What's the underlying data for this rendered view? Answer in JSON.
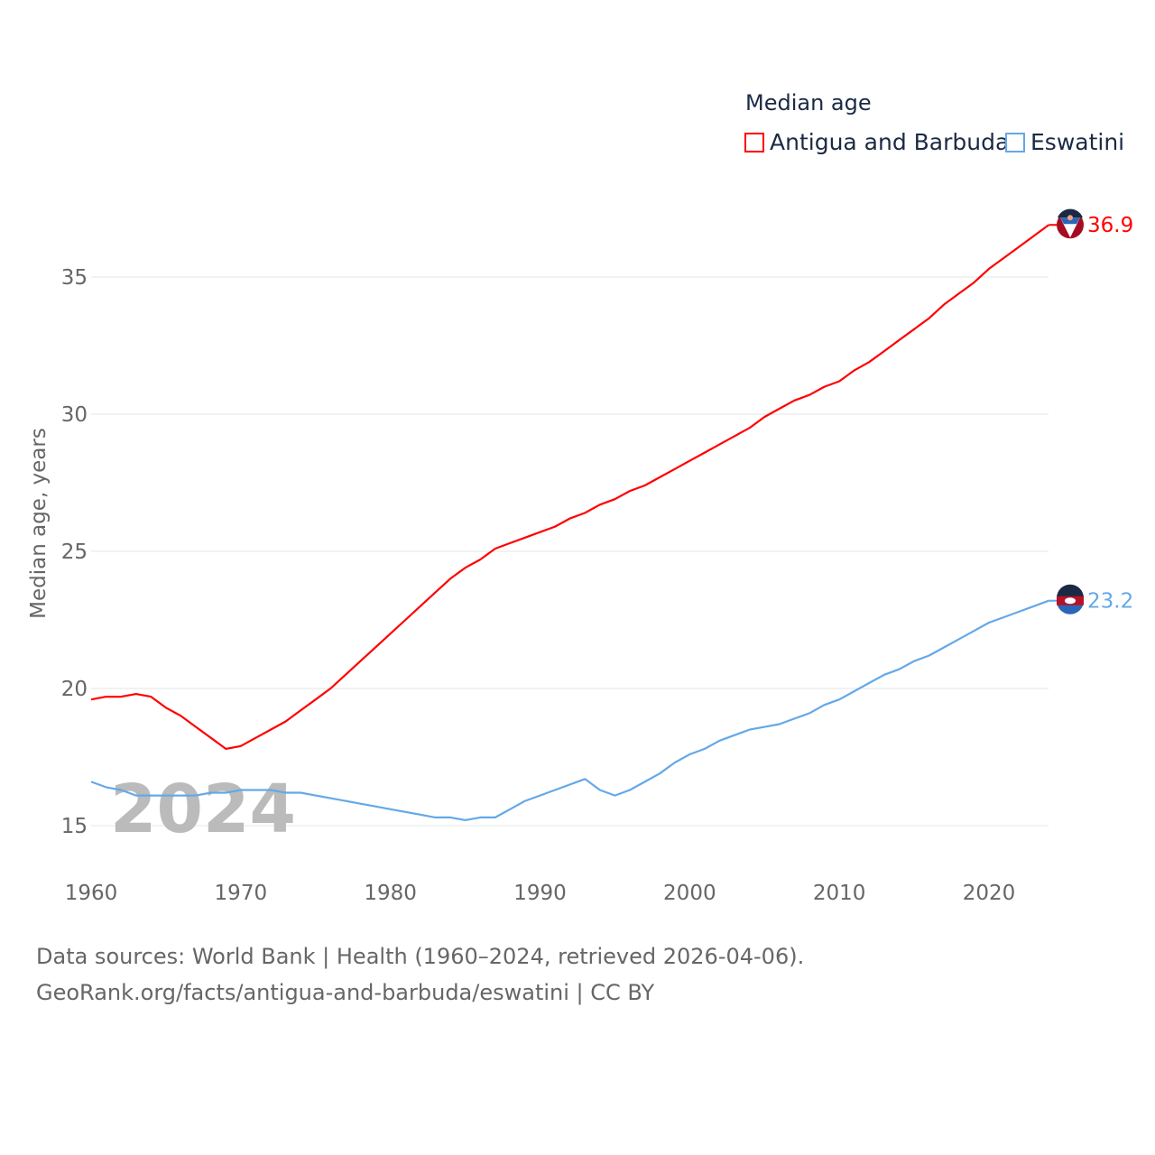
{
  "chart_data": {
    "type": "line",
    "title": "Median age",
    "xlabel": "",
    "ylabel": "Median age, years",
    "xlim": [
      1960,
      2024
    ],
    "ylim": [
      13.5,
      38
    ],
    "x_ticks": [
      1960,
      1970,
      1980,
      1990,
      2000,
      2010,
      2020
    ],
    "y_ticks": [
      15,
      20,
      25,
      30,
      35
    ],
    "grid": true,
    "legend_position": "top-right",
    "year_watermark": "2024",
    "x": [
      1960,
      1961,
      1962,
      1963,
      1964,
      1965,
      1966,
      1967,
      1968,
      1969,
      1970,
      1971,
      1972,
      1973,
      1974,
      1975,
      1976,
      1977,
      1978,
      1979,
      1980,
      1981,
      1982,
      1983,
      1984,
      1985,
      1986,
      1987,
      1988,
      1989,
      1990,
      1991,
      1992,
      1993,
      1994,
      1995,
      1996,
      1997,
      1998,
      1999,
      2000,
      2001,
      2002,
      2003,
      2004,
      2005,
      2006,
      2007,
      2008,
      2009,
      2010,
      2011,
      2012,
      2013,
      2014,
      2015,
      2016,
      2017,
      2018,
      2019,
      2020,
      2021,
      2022,
      2023,
      2024
    ],
    "series": [
      {
        "name": "Antigua and Barbuda",
        "color": "#ff0000",
        "end_label": "36.9",
        "values": [
          19.6,
          19.7,
          19.7,
          19.8,
          19.7,
          19.3,
          19.0,
          18.6,
          18.2,
          17.8,
          17.9,
          18.2,
          18.5,
          18.8,
          19.2,
          19.6,
          20.0,
          20.5,
          21.0,
          21.5,
          22.0,
          22.5,
          23.0,
          23.5,
          24.0,
          24.4,
          24.7,
          25.1,
          25.3,
          25.5,
          25.7,
          25.9,
          26.2,
          26.4,
          26.7,
          26.9,
          27.2,
          27.4,
          27.7,
          28.0,
          28.3,
          28.6,
          28.9,
          29.2,
          29.5,
          29.9,
          30.2,
          30.5,
          30.7,
          31.0,
          31.2,
          31.6,
          31.9,
          32.3,
          32.7,
          33.1,
          33.5,
          34.0,
          34.4,
          34.8,
          35.3,
          35.7,
          36.1,
          36.5,
          36.9
        ]
      },
      {
        "name": "Eswatini",
        "color": "#64a8e8",
        "end_label": "23.2",
        "values": [
          16.6,
          16.4,
          16.3,
          16.1,
          16.1,
          16.1,
          16.1,
          16.1,
          16.2,
          16.2,
          16.3,
          16.3,
          16.3,
          16.2,
          16.2,
          16.1,
          16.0,
          15.9,
          15.8,
          15.7,
          15.6,
          15.5,
          15.4,
          15.3,
          15.3,
          15.2,
          15.3,
          15.3,
          15.6,
          15.9,
          16.1,
          16.3,
          16.5,
          16.7,
          16.3,
          16.1,
          16.3,
          16.6,
          16.9,
          17.3,
          17.6,
          17.8,
          18.1,
          18.3,
          18.5,
          18.6,
          18.7,
          18.9,
          19.1,
          19.4,
          19.6,
          19.9,
          20.2,
          20.5,
          20.7,
          21.0,
          21.2,
          21.5,
          21.8,
          22.1,
          22.4,
          22.6,
          22.8,
          23.0,
          23.2
        ]
      }
    ]
  },
  "footer": {
    "line1": "Data sources: World Bank | Health (1960–2024, retrieved 2026-04-06).",
    "line2": "GeoRank.org/facts/antigua-and-barbuda/eswatini | CC BY"
  }
}
